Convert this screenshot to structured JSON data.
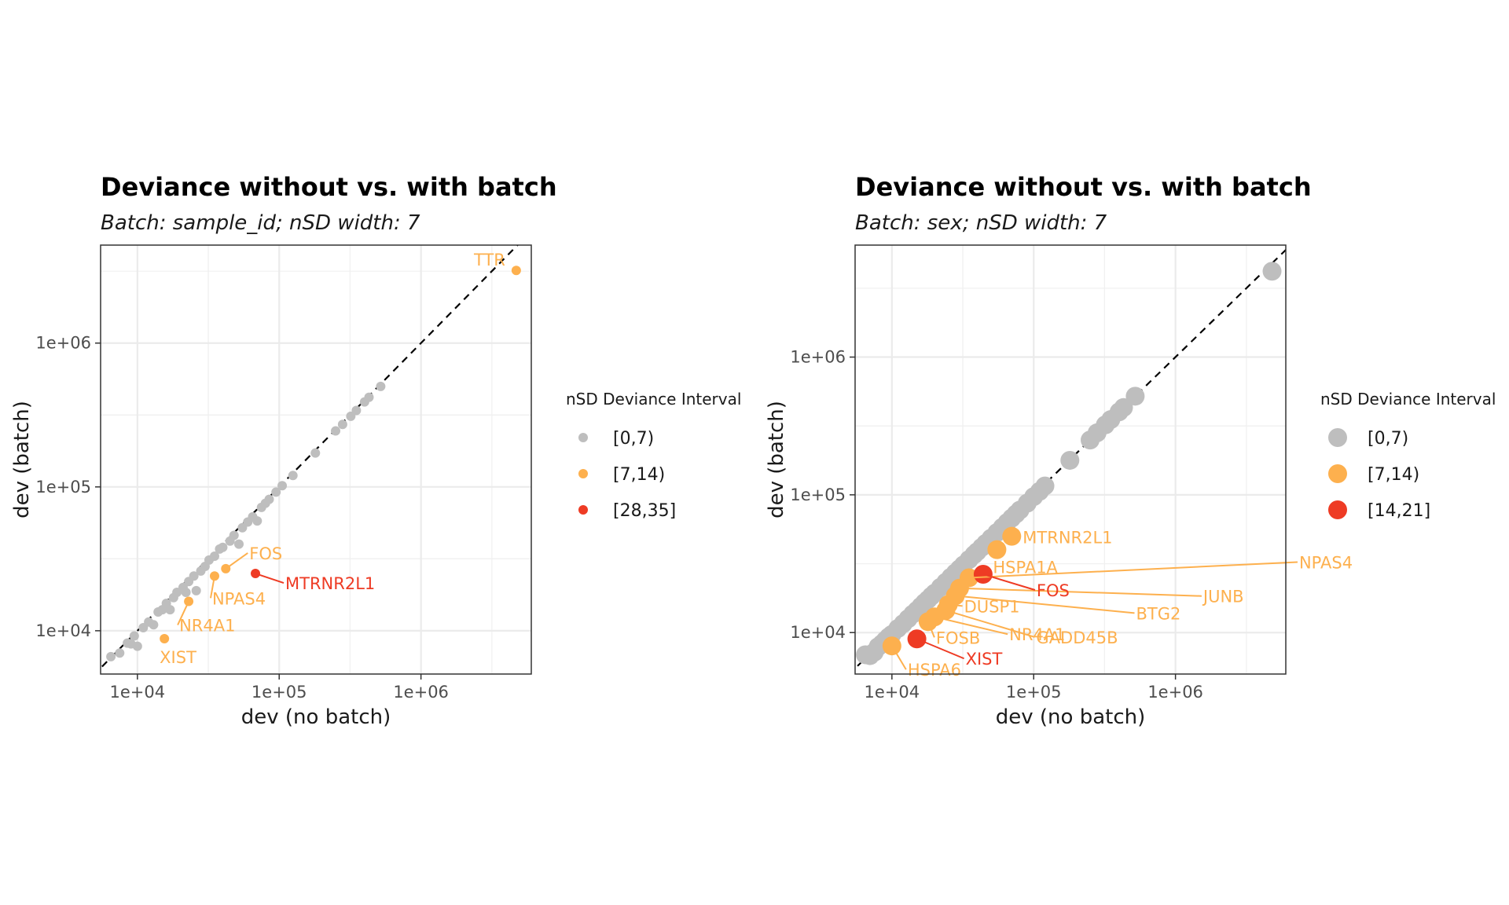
{
  "chart_data": [
    {
      "type": "scatter",
      "title": "Deviance without vs. with batch",
      "subtitle": "Batch: sample_id; nSD width: 7",
      "xlabel": "dev (no batch)",
      "ylabel": "dev (batch)",
      "x_scale": "log10",
      "y_scale": "log10",
      "xlim": [
        5500,
        6000000
      ],
      "ylim": [
        5000,
        4800000
      ],
      "x_ticks": [
        10000,
        100000,
        1000000
      ],
      "x_tick_labels": [
        "1e+04",
        "1e+05",
        "1e+06"
      ],
      "y_ticks": [
        10000,
        100000,
        1000000
      ],
      "y_tick_labels": [
        "1e+04",
        "1e+05",
        "1e+06"
      ],
      "grid": true,
      "reference_line": "y = x (dashed)",
      "legend": {
        "title": "nSD Deviance Interval",
        "placement": "right",
        "entries": [
          {
            "label": "[0,7)",
            "color": "#BEBEBE"
          },
          {
            "label": "[7,14)",
            "color": "#FDB04E"
          },
          {
            "label": "[28,35]",
            "color": "#EE3B24"
          }
        ]
      },
      "point_size": "small",
      "series": [
        {
          "group": "[0,7)",
          "color": "#BEBEBE",
          "points": [
            [
              6500,
              6600
            ],
            [
              7500,
              7000
            ],
            [
              8500,
              8200
            ],
            [
              9500,
              9200
            ],
            [
              9000,
              8100
            ],
            [
              10000,
              7800
            ],
            [
              11000,
              10500
            ],
            [
              12000,
              11500
            ],
            [
              13000,
              11000
            ],
            [
              14000,
              13500
            ],
            [
              15000,
              14000
            ],
            [
              16000,
              15500
            ],
            [
              17000,
              14000
            ],
            [
              18000,
              17000
            ],
            [
              19000,
              18500
            ],
            [
              21000,
              20000
            ],
            [
              22000,
              18500
            ],
            [
              23000,
              22000
            ],
            [
              25000,
              24000
            ],
            [
              26000,
              19000
            ],
            [
              28000,
              26000
            ],
            [
              30000,
              28000
            ],
            [
              32000,
              31000
            ],
            [
              35000,
              33000
            ],
            [
              38000,
              37000
            ],
            [
              40000,
              38000
            ],
            [
              45000,
              42000
            ],
            [
              48000,
              46000
            ],
            [
              52000,
              40000
            ],
            [
              55000,
              52000
            ],
            [
              60000,
              57000
            ],
            [
              65000,
              62000
            ],
            [
              70000,
              58000
            ],
            [
              75000,
              72000
            ],
            [
              80000,
              77000
            ],
            [
              85000,
              82000
            ],
            [
              95000,
              92000
            ],
            [
              105000,
              102000
            ],
            [
              125000,
              120000
            ],
            [
              180000,
              172000
            ],
            [
              250000,
              245000
            ],
            [
              280000,
              272000
            ],
            [
              320000,
              310000
            ],
            [
              350000,
              340000
            ],
            [
              400000,
              390000
            ],
            [
              430000,
              420000
            ],
            [
              520000,
              500000
            ]
          ]
        },
        {
          "group": "[7,14)",
          "color": "#FDB04E",
          "points": [
            {
              "x": 4700000,
              "y": 3200000,
              "label": "TTR"
            },
            {
              "x": 42000,
              "y": 27000,
              "label": "FOS"
            },
            {
              "x": 35000,
              "y": 24000,
              "label": "NPAS4"
            },
            {
              "x": 23000,
              "y": 16000,
              "label": "NR4A1"
            },
            {
              "x": 15500,
              "y": 8800,
              "label": "XIST"
            }
          ]
        },
        {
          "group": "[28,35]",
          "color": "#EE3B24",
          "points": [
            {
              "x": 68000,
              "y": 25000,
              "label": "MTRNR2L1"
            }
          ]
        }
      ]
    },
    {
      "type": "scatter",
      "title": "Deviance without vs. with batch",
      "subtitle": "Batch: sex; nSD width: 7",
      "xlabel": "dev (no batch)",
      "ylabel": "dev (batch)",
      "x_scale": "log10",
      "y_scale": "log10",
      "xlim": [
        5500,
        6000000
      ],
      "ylim": [
        5000,
        6500000
      ],
      "x_ticks": [
        10000,
        100000,
        1000000
      ],
      "x_tick_labels": [
        "1e+04",
        "1e+05",
        "1e+06"
      ],
      "y_ticks": [
        10000,
        100000,
        1000000
      ],
      "y_tick_labels": [
        "1e+04",
        "1e+05",
        "1e+06"
      ],
      "grid": true,
      "reference_line": "y = x (dashed)",
      "legend": {
        "title": "nSD Deviance Interval",
        "placement": "right",
        "entries": [
          {
            "label": "[0,7)",
            "color": "#BEBEBE"
          },
          {
            "label": "[7,14)",
            "color": "#FDB04E"
          },
          {
            "label": "[14,21]",
            "color": "#EE3B24"
          }
        ]
      },
      "point_size": "large",
      "series": [
        {
          "group": "[0,7)",
          "color": "#BEBEBE",
          "points": [
            [
              6500,
              6900
            ],
            [
              7000,
              6800
            ],
            [
              7500,
              7200
            ],
            [
              8000,
              7900
            ],
            [
              8500,
              8300
            ],
            [
              9000,
              8800
            ],
            [
              9500,
              9300
            ],
            [
              10000,
              9700
            ],
            [
              11000,
              10700
            ],
            [
              12000,
              11600
            ],
            [
              13000,
              12600
            ],
            [
              14000,
              13600
            ],
            [
              15000,
              14500
            ],
            [
              16000,
              15500
            ],
            [
              17000,
              16500
            ],
            [
              18000,
              17400
            ],
            [
              19000,
              18400
            ],
            [
              20000,
              19300
            ],
            [
              22000,
              21300
            ],
            [
              24000,
              23200
            ],
            [
              26000,
              25200
            ],
            [
              28000,
              27100
            ],
            [
              30000,
              29000
            ],
            [
              32000,
              31000
            ],
            [
              35000,
              33900
            ],
            [
              38000,
              36800
            ],
            [
              40000,
              38700
            ],
            [
              43000,
              41600
            ],
            [
              46000,
              44500
            ],
            [
              50000,
              48400
            ],
            [
              55000,
              53200
            ],
            [
              60000,
              58000
            ],
            [
              65000,
              63000
            ],
            [
              70000,
              67800
            ],
            [
              75000,
              72600
            ],
            [
              80000,
              77500
            ],
            [
              90000,
              87000
            ],
            [
              100000,
              97000
            ],
            [
              110000,
              106000
            ],
            [
              120000,
              116000
            ],
            [
              180000,
              178000
            ],
            [
              250000,
              250000
            ],
            [
              280000,
              282000
            ],
            [
              320000,
              322000
            ],
            [
              350000,
              352000
            ],
            [
              400000,
              400000
            ],
            [
              430000,
              430000
            ],
            [
              520000,
              520000
            ],
            [
              4800000,
              4200000
            ]
          ]
        },
        {
          "group": "[7,14)",
          "color": "#FDB04E",
          "points": [
            {
              "x": 70000,
              "y": 50000,
              "label": "MTRNR2L1"
            },
            {
              "x": 55000,
              "y": 40000,
              "label": "HSPA1A"
            },
            {
              "x": 25000,
              "y": 16000,
              "label": "DUSP1"
            },
            {
              "x": 18000,
              "y": 12000,
              "label": "FOSB"
            },
            {
              "x": 20000,
              "y": 13000,
              "label": "NR4A1"
            },
            {
              "x": 10000,
              "y": 8000,
              "label": "HSPA6"
            },
            {
              "x": 24000,
              "y": 14500,
              "label": "GADD45B"
            },
            {
              "x": 28000,
              "y": 18500,
              "label": "BTG2"
            },
            {
              "x": 30000,
              "y": 21000,
              "label": "JUNB"
            },
            {
              "x": 35000,
              "y": 25000,
              "label": "NPAS4"
            }
          ]
        },
        {
          "group": "[14,21]",
          "color": "#EE3B24",
          "points": [
            {
              "x": 44000,
              "y": 26500,
              "label": "FOS"
            },
            {
              "x": 15000,
              "y": 9000,
              "label": "XIST"
            }
          ]
        }
      ]
    }
  ]
}
